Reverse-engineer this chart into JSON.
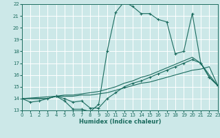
{
  "xlabel": "Humidex (Indice chaleur)",
  "bg_color": "#cce8e8",
  "grid_color": "#ffffff",
  "line_color": "#1a6b5e",
  "xlim": [
    0,
    23
  ],
  "ylim": [
    13,
    22
  ],
  "x_ticks": [
    0,
    1,
    2,
    3,
    4,
    5,
    6,
    7,
    8,
    9,
    10,
    11,
    12,
    13,
    14,
    15,
    16,
    17,
    18,
    19,
    20,
    21,
    22,
    23
  ],
  "y_ticks": [
    13,
    14,
    15,
    16,
    17,
    18,
    19,
    20,
    21,
    22
  ],
  "line1_x": [
    0,
    1,
    2,
    3,
    4,
    5,
    6,
    7,
    8,
    9,
    10,
    11,
    12,
    13,
    14,
    15,
    16,
    17,
    18,
    19,
    20,
    21,
    22,
    23
  ],
  "line1_y": [
    14.0,
    13.7,
    13.8,
    14.0,
    14.2,
    13.8,
    13.1,
    13.1,
    12.9,
    13.5,
    18.0,
    21.3,
    22.2,
    21.8,
    21.2,
    21.2,
    20.7,
    20.5,
    17.8,
    18.0,
    21.2,
    17.0,
    15.8,
    15.1
  ],
  "line2_x": [
    0,
    4,
    5,
    6,
    7,
    8,
    9,
    10,
    11,
    12,
    13,
    14,
    15,
    16,
    17,
    18,
    19,
    20,
    21,
    22,
    23
  ],
  "line2_y": [
    14.0,
    14.2,
    14.0,
    13.7,
    13.8,
    13.2,
    13.2,
    14.0,
    14.5,
    15.0,
    15.3,
    15.5,
    15.8,
    16.1,
    16.4,
    16.7,
    17.0,
    17.3,
    17.0,
    15.8,
    15.1
  ],
  "line3_x": [
    0,
    1,
    2,
    3,
    4,
    5,
    6,
    7,
    8,
    9,
    10,
    11,
    12,
    13,
    14,
    15,
    16,
    17,
    18,
    19,
    20,
    21,
    22,
    23
  ],
  "line3_y": [
    14.0,
    14.0,
    14.0,
    14.0,
    14.2,
    14.3,
    14.3,
    14.4,
    14.5,
    14.6,
    14.8,
    15.0,
    15.3,
    15.5,
    15.8,
    16.0,
    16.3,
    16.6,
    16.9,
    17.2,
    17.5,
    17.0,
    16.0,
    15.1
  ],
  "line4_x": [
    0,
    1,
    2,
    3,
    4,
    5,
    6,
    7,
    8,
    9,
    10,
    11,
    12,
    13,
    14,
    15,
    16,
    17,
    18,
    19,
    20,
    21,
    22,
    23
  ],
  "line4_y": [
    14.0,
    14.0,
    14.0,
    14.0,
    14.2,
    14.2,
    14.2,
    14.3,
    14.3,
    14.4,
    14.5,
    14.7,
    14.9,
    15.1,
    15.3,
    15.4,
    15.6,
    15.8,
    16.0,
    16.2,
    16.4,
    16.5,
    16.7,
    15.1
  ]
}
